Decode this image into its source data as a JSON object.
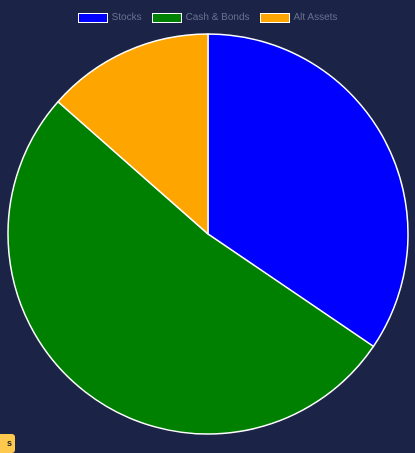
{
  "chart_data": {
    "type": "pie",
    "legend_position": "top",
    "series": [
      {
        "name": "Stocks",
        "value": 34.5,
        "color": "#0000ff"
      },
      {
        "name": "Cash & Bonds",
        "value": 52.0,
        "color": "#008000"
      },
      {
        "name": "Alt Assets",
        "value": 13.5,
        "color": "#ffa500"
      }
    ]
  },
  "corner_tag": "s"
}
